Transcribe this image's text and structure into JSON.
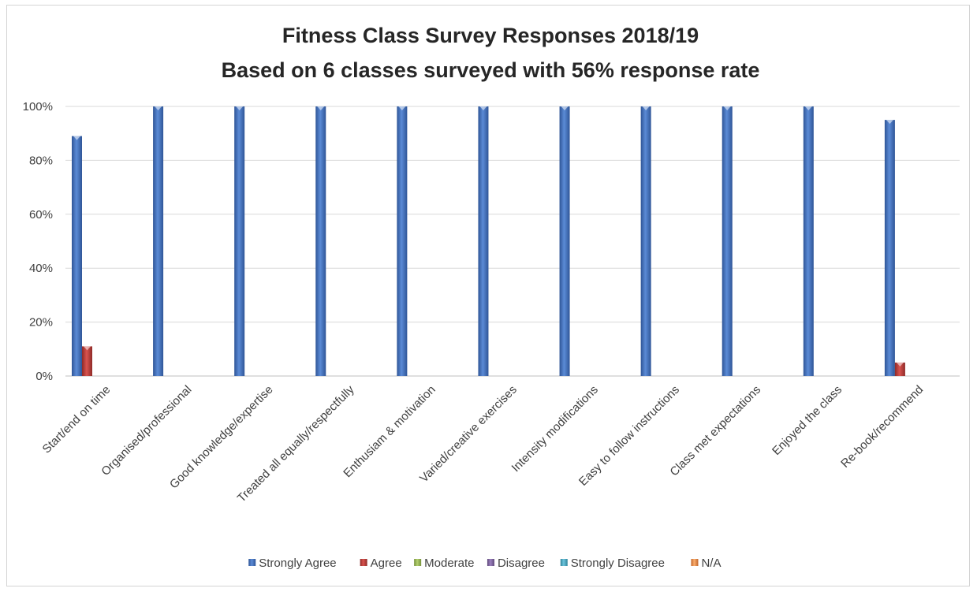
{
  "chart_data": {
    "type": "bar",
    "title": "Fitness Class Survey Responses 2018/19",
    "subtitle": "Based on 6 classes surveyed with 56% response rate",
    "xlabel": "",
    "ylabel": "",
    "ylim": [
      0,
      100
    ],
    "y_ticks": [
      "0%",
      "20%",
      "40%",
      "60%",
      "80%",
      "100%"
    ],
    "grid": true,
    "legend_position": "bottom",
    "categories": [
      "Start/end on time",
      "Organised/professional",
      "Good knowledge/expertise",
      "Treated all equally/respectfully",
      "Enthusiam & motivation",
      "Varied/creative exercises",
      "Intensity modifications",
      "Easy to follow instructions",
      "Class met expectations",
      "Enjoyed the class",
      "Re-book/recommend"
    ],
    "series": [
      {
        "name": "Strongly Agree",
        "color": "#4472c4",
        "values": [
          89,
          100,
          100,
          100,
          100,
          100,
          100,
          100,
          100,
          100,
          95
        ]
      },
      {
        "name": "Agree",
        "color": "#c0504d",
        "values": [
          11,
          0,
          0,
          0,
          0,
          0,
          0,
          0,
          0,
          0,
          5
        ]
      },
      {
        "name": "Moderate",
        "color": "#9bbb59",
        "values": [
          0,
          0,
          0,
          0,
          0,
          0,
          0,
          0,
          0,
          0,
          0
        ]
      },
      {
        "name": "Disagree",
        "color": "#8064a2",
        "values": [
          0,
          0,
          0,
          0,
          0,
          0,
          0,
          0,
          0,
          0,
          0
        ]
      },
      {
        "name": "Strongly Disagree",
        "color": "#4bacc6",
        "values": [
          0,
          0,
          0,
          0,
          0,
          0,
          0,
          0,
          0,
          0,
          0
        ]
      },
      {
        "name": "N/A",
        "color": "#f79646",
        "values": [
          0,
          0,
          0,
          0,
          0,
          0,
          0,
          0,
          0,
          0,
          0
        ]
      }
    ]
  }
}
